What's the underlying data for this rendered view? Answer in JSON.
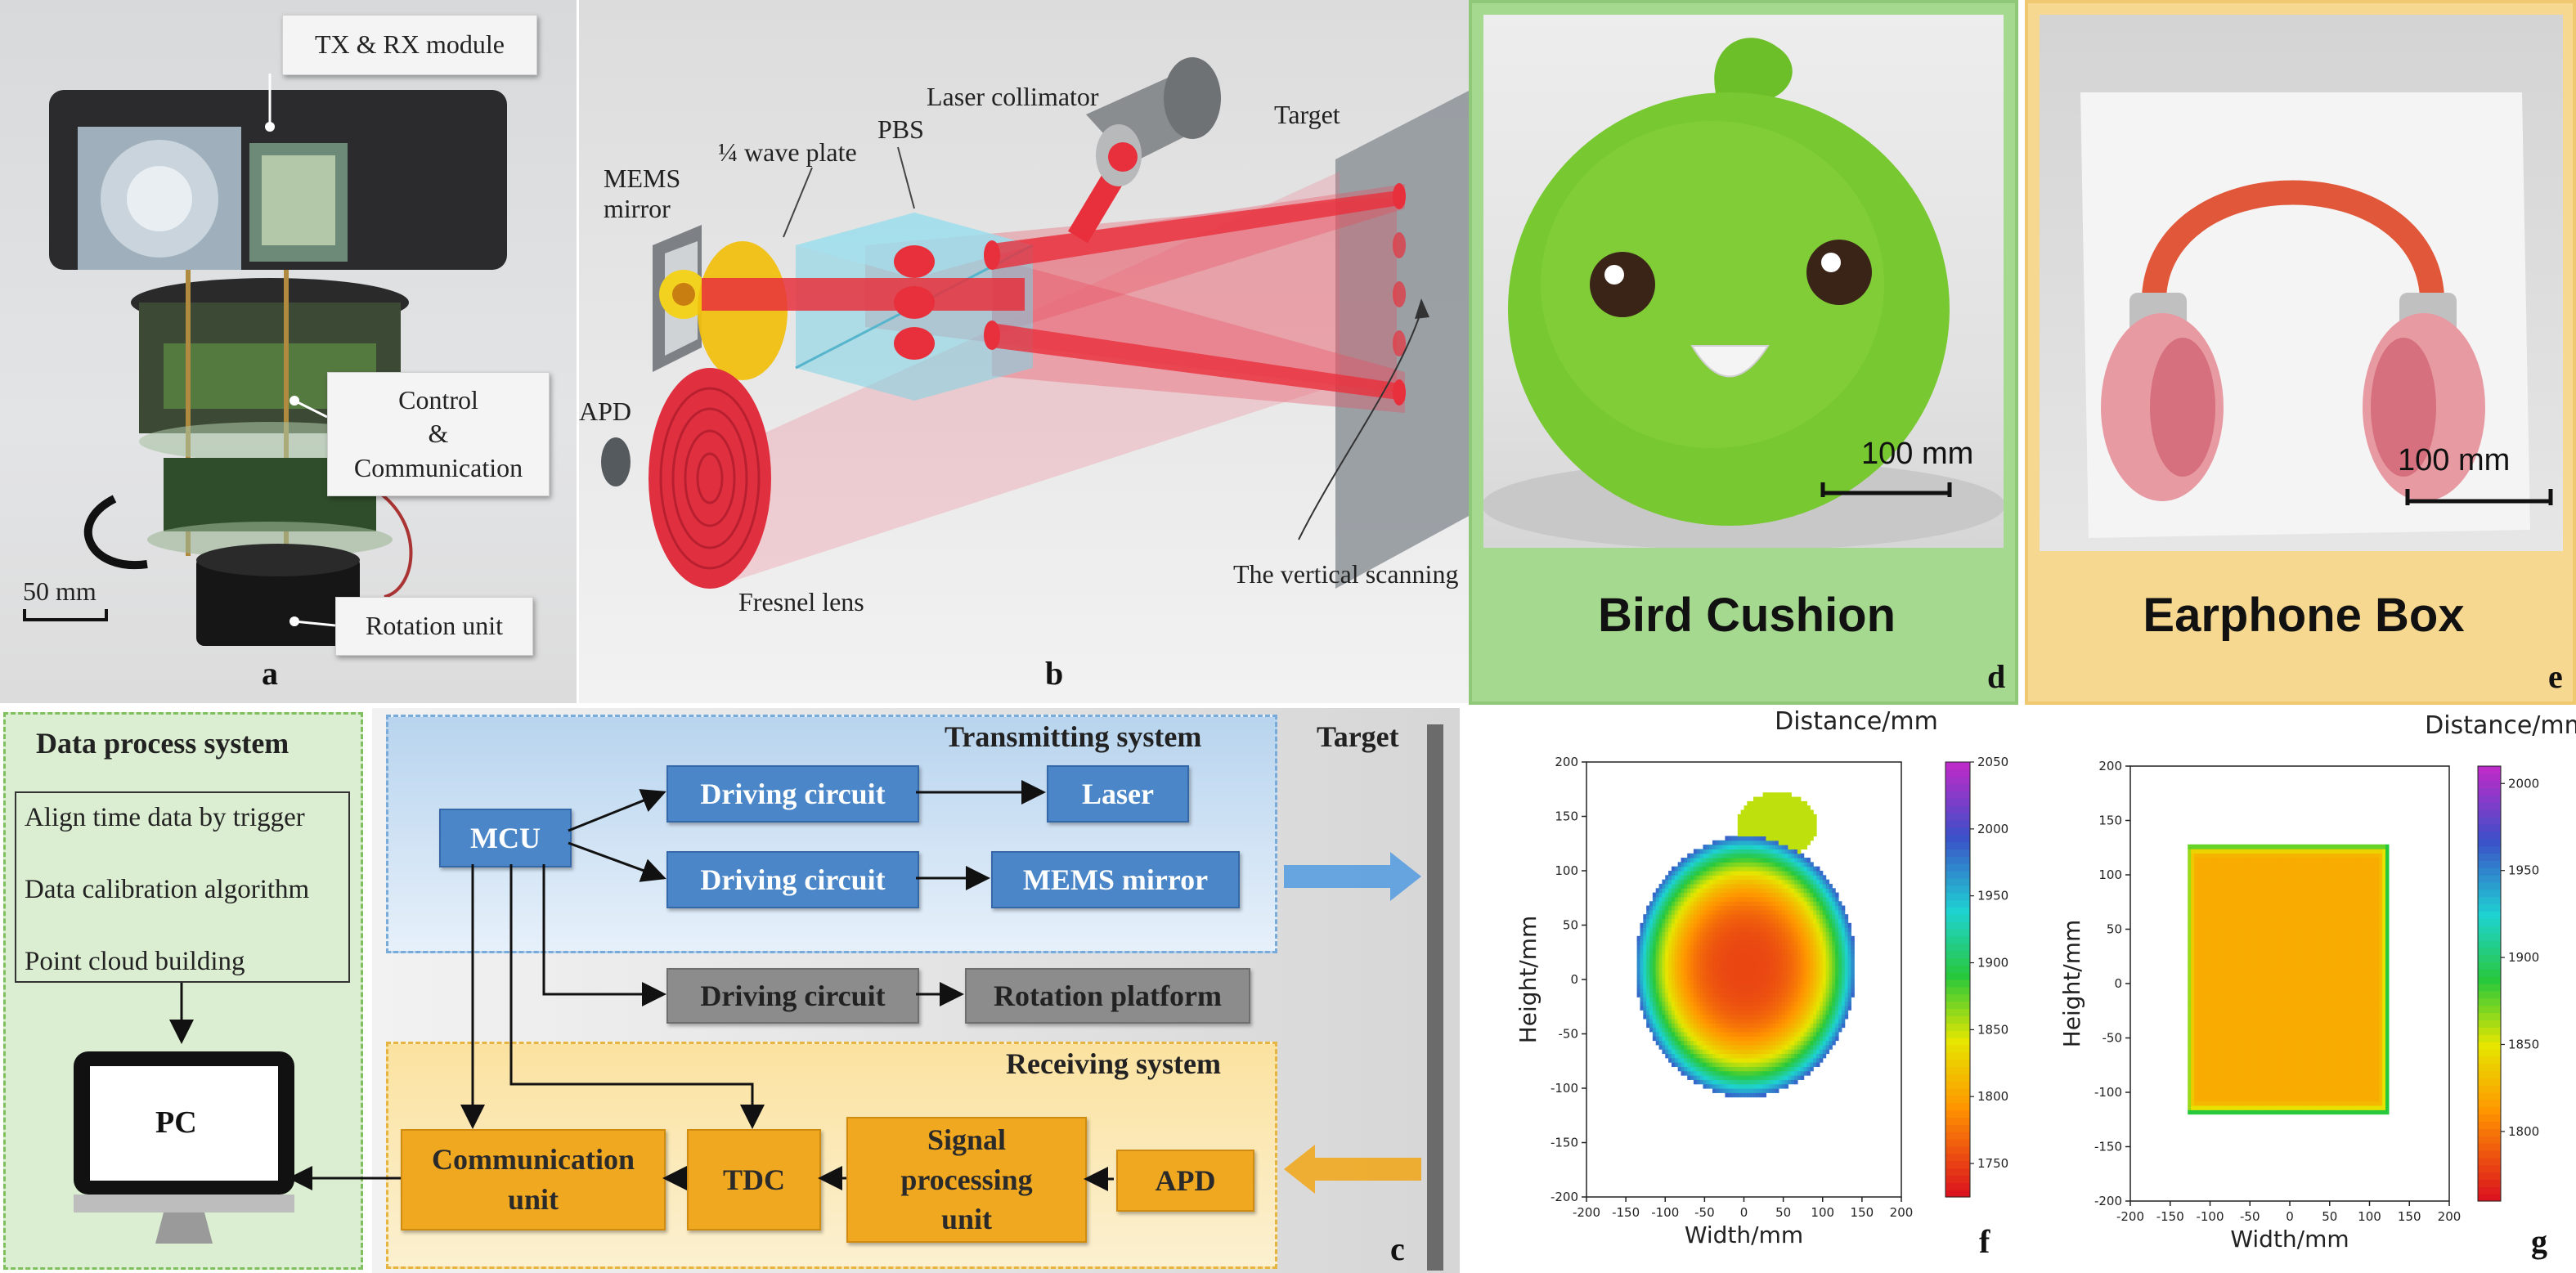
{
  "panel_a": {
    "callout_txrx": "TX & RX module",
    "callout_control": "Control\n&\nCommunication",
    "callout_rotation": "Rotation unit",
    "scale": "50 mm",
    "letter": "a"
  },
  "panel_b": {
    "laser_collimator": "Laser collimator",
    "target": "Target",
    "mems_mirror": "MEMS\nmirror",
    "wave_plate": "¼ wave plate",
    "pbs": "PBS",
    "apd": "APD",
    "fresnel": "Fresnel lens",
    "vertical_scanning": "The vertical scanning",
    "letter": "b"
  },
  "panel_d": {
    "scale": "100 mm",
    "caption": "Bird Cushion",
    "letter": "d"
  },
  "panel_e": {
    "scale": "100 mm",
    "caption": "Earphone Box",
    "letter": "e"
  },
  "panel_c": {
    "data_process_title": "Data process system",
    "dp_items": [
      "Align time data by trigger",
      "Data calibration algorithm",
      "Point cloud building"
    ],
    "pc": "PC",
    "transmitting_title": "Transmitting system",
    "receiving_title": "Receiving system",
    "target": "Target",
    "mcu": "MCU",
    "driving_circuit": "Driving circuit",
    "laser": "Laser",
    "mems_mirror": "MEMS mirror",
    "rotation_platform": "Rotation platform",
    "communication_unit": "Communication\nunit",
    "tdc": "TDC",
    "signal_processing": "Signal\nprocessing\nunit",
    "apd": "APD",
    "letter": "c"
  },
  "chart_data": [
    {
      "type": "scatter",
      "panel": "f",
      "xlabel": "Width/mm",
      "ylabel": "Height/mm",
      "colorbar_label": "Distance/mm",
      "xlim": [
        -200,
        200
      ],
      "ylim": [
        -200,
        200
      ],
      "xticks": [
        -200,
        -150,
        -100,
        -50,
        0,
        50,
        100,
        150,
        200
      ],
      "yticks": [
        -200,
        -150,
        -100,
        -50,
        0,
        50,
        100,
        150,
        200
      ],
      "colorbar_range": [
        1725,
        2050
      ],
      "colorbar_ticks": [
        1750,
        1800,
        1850,
        1900,
        1950,
        2000,
        2050
      ],
      "colormap": "rainbow",
      "shape": {
        "kind": "round-cushion",
        "center": [
          0,
          10
        ],
        "half_width": 140,
        "half_height": 120,
        "tuft_center": [
          40,
          140
        ],
        "tuft_size": [
          50,
          30
        ]
      },
      "distance_center": 1750,
      "distance_edge": 1985,
      "letter": "f"
    },
    {
      "type": "scatter",
      "panel": "g",
      "xlabel": "Width/mm",
      "ylabel": "Height/mm",
      "colorbar_label": "Distance/mm",
      "xlim": [
        -200,
        200
      ],
      "ylim": [
        -200,
        200
      ],
      "xticks": [
        -200,
        -150,
        -100,
        -50,
        0,
        50,
        100,
        150,
        200
      ],
      "yticks": [
        -200,
        -150,
        -100,
        -50,
        0,
        50,
        100,
        150,
        200
      ],
      "colorbar_range": [
        1760,
        2010
      ],
      "colorbar_ticks": [
        1800,
        1850,
        1900,
        1950,
        2000
      ],
      "colormap": "rainbow",
      "shape": {
        "kind": "box",
        "x": [
          -130,
          120
        ],
        "y": [
          -120,
          125
        ]
      },
      "distance_center": 1820,
      "distance_edge": 1885,
      "letter": "g"
    }
  ]
}
